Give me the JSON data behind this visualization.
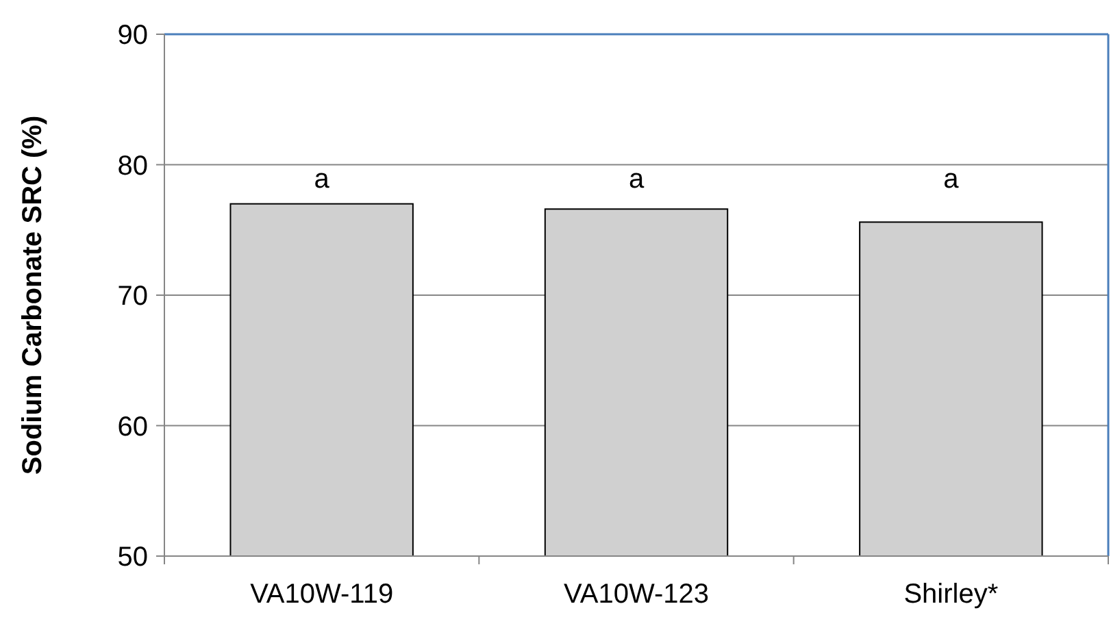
{
  "chart_data": {
    "type": "bar",
    "ylabel": "Sodium Carbonate SRC (%)",
    "categories": [
      "VA10W-119",
      "VA10W-123",
      "Shirley*"
    ],
    "values": [
      77.0,
      76.6,
      75.6
    ],
    "color": "#d0d0d0",
    "ylim": [
      50,
      90
    ],
    "yticks": [
      50,
      60,
      70,
      80,
      90
    ],
    "grid": "y",
    "annotations": [
      "a",
      "a",
      "a"
    ]
  }
}
